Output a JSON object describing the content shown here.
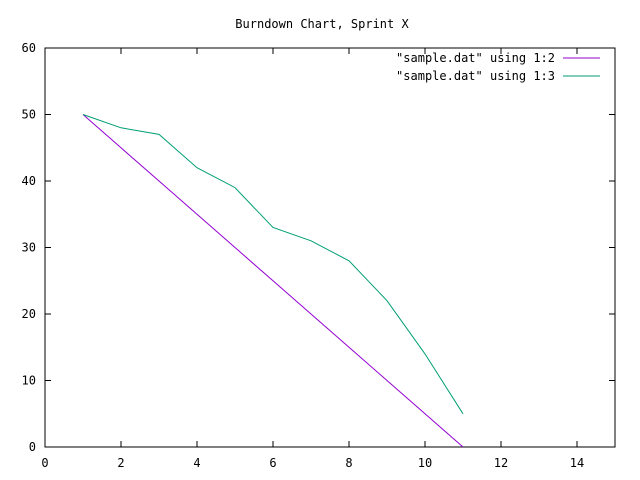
{
  "chart_data": {
    "type": "line",
    "title": "Burndown Chart, Sprint X",
    "xlabel": "",
    "ylabel": "",
    "xlim": [
      0,
      15
    ],
    "ylim": [
      0,
      60
    ],
    "x_ticks": [
      0,
      2,
      4,
      6,
      8,
      10,
      12,
      14
    ],
    "y_ticks": [
      0,
      10,
      20,
      30,
      40,
      50,
      60
    ],
    "grid": false,
    "legend_position": "top-right",
    "series": [
      {
        "name": "\"sample.dat\" using 1:2",
        "color": "#9400d3",
        "x": [
          1,
          2,
          3,
          4,
          5,
          6,
          7,
          8,
          9,
          10,
          11
        ],
        "y": [
          50,
          45,
          40,
          35,
          30,
          25,
          20,
          15,
          10,
          5,
          0
        ]
      },
      {
        "name": "\"sample.dat\" using 1:3",
        "color": "#009e73",
        "x": [
          1,
          2,
          3,
          4,
          5,
          6,
          7,
          8,
          9,
          10,
          11
        ],
        "y": [
          50,
          48,
          47,
          42,
          39,
          33,
          31,
          28,
          22,
          14,
          5
        ]
      }
    ]
  }
}
